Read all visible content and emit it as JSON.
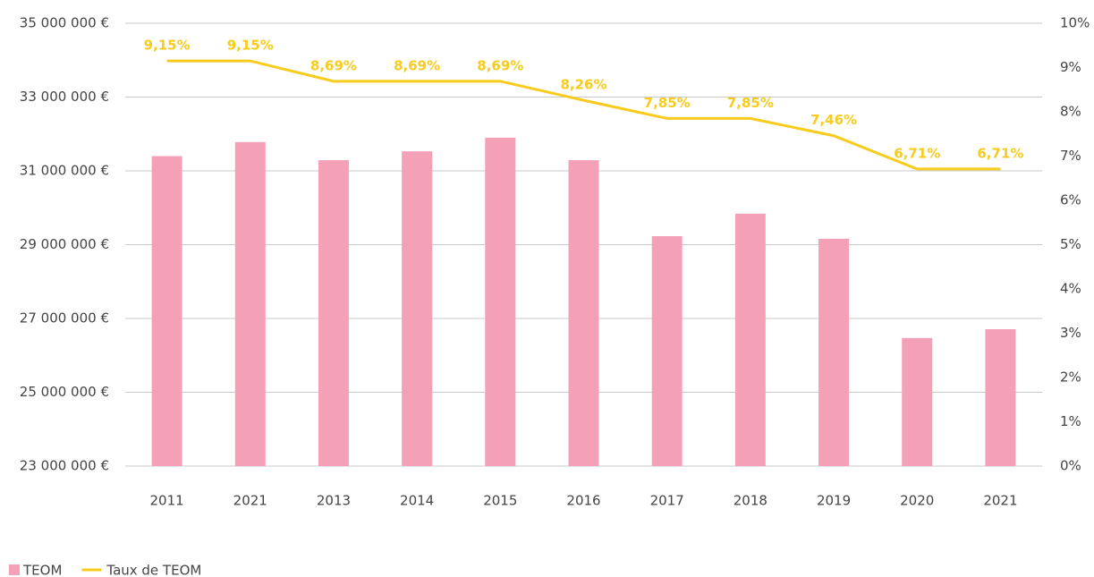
{
  "chart_data": {
    "type": "bar-line",
    "categories": [
      "2011",
      "2021",
      "2013",
      "2014",
      "2015",
      "2016",
      "2017",
      "2018",
      "2019",
      "2020",
      "2021"
    ],
    "series": [
      {
        "name": "TEOM",
        "color": "#f4a1b8",
        "type": "bar",
        "values": [
          31400000,
          31780000,
          31290000,
          31530000,
          31900000,
          31290000,
          29230000,
          29840000,
          29160000,
          26470000,
          26710000
        ]
      },
      {
        "name": "Taux de TEOM",
        "color": "#f8cb1c",
        "type": "line",
        "axis": "y2",
        "values": [
          9.15,
          9.15,
          8.69,
          8.69,
          8.69,
          8.26,
          7.85,
          7.85,
          7.46,
          6.71,
          6.71
        ],
        "value_labels": [
          "9,15%",
          "9,15%",
          "8,69%",
          "8,69%",
          "8,69%",
          "8,26%",
          "7,85%",
          "7,85%",
          "7,46%",
          "6,71%",
          "6,71%"
        ]
      }
    ],
    "ylim": [
      23000000,
      35000000
    ],
    "yticks": [
      {
        "value": 23000000,
        "label": "23 000 000 €"
      },
      {
        "value": 25000000,
        "label": "25 000 000 €"
      },
      {
        "value": 27000000,
        "label": "27 000 000 €"
      },
      {
        "value": 29000000,
        "label": "29 000 000 €"
      },
      {
        "value": 31000000,
        "label": "31 000 000 €"
      },
      {
        "value": 33000000,
        "label": "33 000 000 €"
      },
      {
        "value": 35000000,
        "label": "35 000 000 €"
      }
    ],
    "y2lim": [
      0,
      10
    ],
    "y2ticks": [
      {
        "value": 0,
        "label": "0%"
      },
      {
        "value": 1,
        "label": "1%"
      },
      {
        "value": 2,
        "label": "2%"
      },
      {
        "value": 3,
        "label": "3%"
      },
      {
        "value": 4,
        "label": "4%"
      },
      {
        "value": 5,
        "label": "5%"
      },
      {
        "value": 6,
        "label": "6%"
      },
      {
        "value": 7,
        "label": "7%"
      },
      {
        "value": 8,
        "label": "8%"
      },
      {
        "value": 9,
        "label": "9%"
      },
      {
        "value": 10,
        "label": "10%"
      }
    ],
    "grid": true,
    "legend": "bottom-left"
  }
}
